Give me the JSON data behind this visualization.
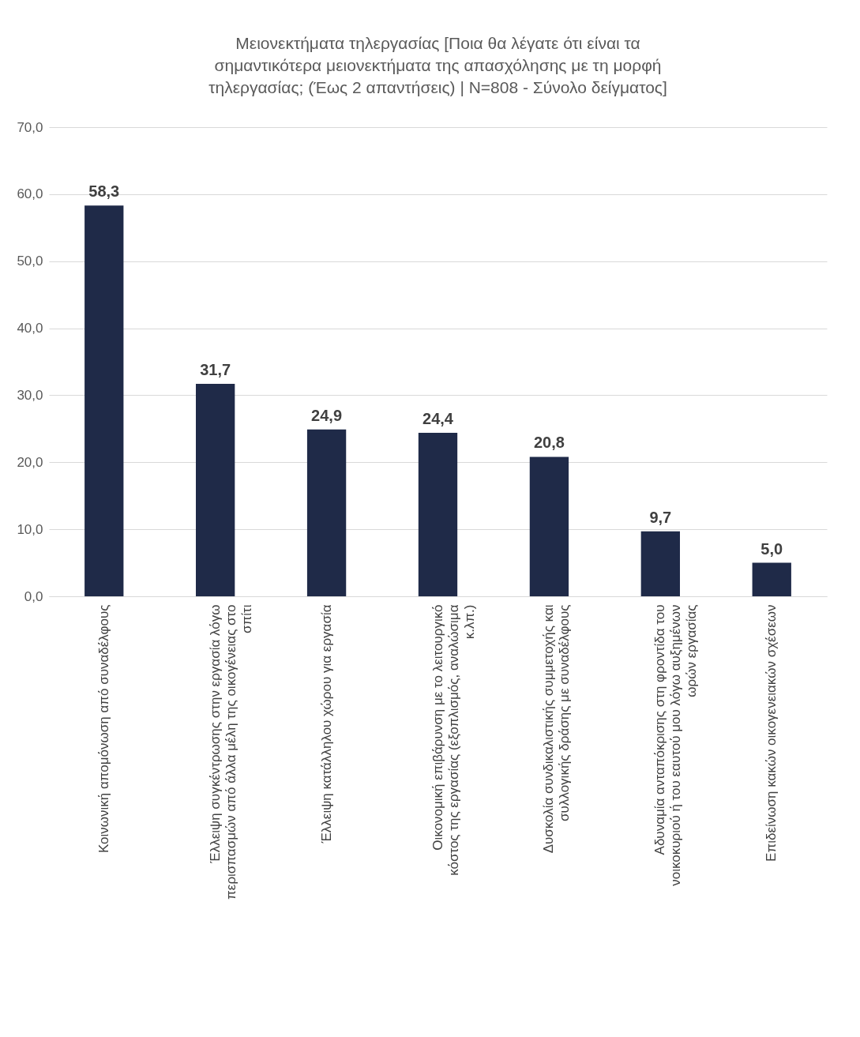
{
  "chart_data": {
    "type": "bar",
    "title": "Μειονεκτήματα τηλεργασίας [Ποια θα λέγατε ότι είναι τα σημαντικότερα μειονεκτήματα της απασχόλησης με τη μορφή τηλεργασίας; (Έως 2 απαντήσεις) | N=808 - Σύνολο δείγματος]",
    "categories": [
      "Κοινωνική απομόνωση από συναδέλφους",
      "Έλλειψη συγκέντρωσης στην εργασία λόγω περισπασμών από άλλα μέλη της οικογένειας στο σπίτι",
      "Έλλειψη κατάλληλου χώρου για εργασία",
      "Οικονομική επιβάρυνση με το λειτουργικό κόστος της εργασίας (εξοπλισμός, αναλώσιμα κ.λπ.)",
      "Δυσκολία συνδικαλιστικής συμμετοχής και συλλογικής δράσης με συναδέλφους",
      "Αδυναμία ανταπόκρισης στη φροντίδα του νοικοκυριού ή του εαυτού μου λόγω αυξημένων ωρών εργασίας",
      "Επιδείνωση κακών οικογενειακών σχέσεων"
    ],
    "values": [
      58.3,
      31.7,
      24.9,
      24.4,
      20.8,
      9.7,
      5.0
    ],
    "value_labels": [
      "58,3",
      "31,7",
      "24,9",
      "24,4",
      "20,8",
      "9,7",
      "5,0"
    ],
    "color": "#1f2a48",
    "ylim": [
      0,
      70
    ],
    "yticks": [
      {
        "value": 0,
        "label": "0,0"
      },
      {
        "value": 10,
        "label": "10,0"
      },
      {
        "value": 20,
        "label": "20,0"
      },
      {
        "value": 30,
        "label": "30,0"
      },
      {
        "value": 40,
        "label": "40,0"
      },
      {
        "value": 50,
        "label": "50,0"
      },
      {
        "value": 60,
        "label": "60,0"
      },
      {
        "value": 70,
        "label": "70,0"
      }
    ],
    "grid": "y"
  }
}
